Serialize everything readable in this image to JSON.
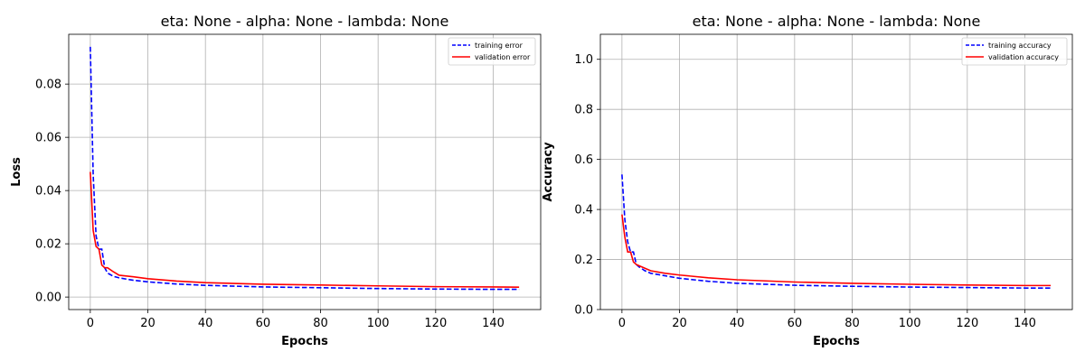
{
  "colors": {
    "training": "#0000ff",
    "validation": "#ff0000",
    "grid": "#b0b0b0"
  },
  "chart_data": [
    {
      "type": "line",
      "title": "eta: None - alpha: None - lambda: None",
      "xlabel": "Epochs",
      "ylabel": "Loss",
      "xlim": [
        -7.5,
        156.5
      ],
      "ylim": [
        -0.0047,
        0.0987
      ],
      "xticks": [
        0,
        20,
        40,
        60,
        80,
        100,
        120,
        140
      ],
      "yticks": [
        0.0,
        0.02,
        0.04,
        0.06,
        0.08
      ],
      "ytick_labels": [
        "0.00",
        "0.02",
        "0.04",
        "0.06",
        "0.08"
      ],
      "grid": true,
      "legend_position": "top-right",
      "series": [
        {
          "name": "training error",
          "style": "dashed",
          "color": "blue",
          "points": [
            [
              0,
              0.094
            ],
            [
              1,
              0.046
            ],
            [
              2,
              0.023
            ],
            [
              3,
              0.018
            ],
            [
              4,
              0.018
            ],
            [
              5,
              0.011
            ],
            [
              6,
              0.009
            ],
            [
              8,
              0.0078
            ],
            [
              10,
              0.0072
            ],
            [
              15,
              0.0063
            ],
            [
              20,
              0.0057
            ],
            [
              30,
              0.0049
            ],
            [
              40,
              0.0044
            ],
            [
              60,
              0.0038
            ],
            [
              80,
              0.0035
            ],
            [
              100,
              0.0032
            ],
            [
              120,
              0.003
            ],
            [
              140,
              0.0029
            ],
            [
              149,
              0.0029
            ]
          ]
        },
        {
          "name": "validation error",
          "style": "solid",
          "color": "red",
          "points": [
            [
              0,
              0.047
            ],
            [
              1,
              0.025
            ],
            [
              2,
              0.019
            ],
            [
              3,
              0.018
            ],
            [
              4,
              0.012
            ],
            [
              5,
              0.011
            ],
            [
              6,
              0.011
            ],
            [
              8,
              0.0095
            ],
            [
              10,
              0.0082
            ],
            [
              15,
              0.0076
            ],
            [
              20,
              0.0069
            ],
            [
              30,
              0.006
            ],
            [
              40,
              0.0054
            ],
            [
              60,
              0.0048
            ],
            [
              80,
              0.0045
            ],
            [
              100,
              0.0042
            ],
            [
              120,
              0.0039
            ],
            [
              140,
              0.0038
            ],
            [
              149,
              0.0037
            ]
          ]
        }
      ]
    },
    {
      "type": "line",
      "title": "eta: None - alpha: None - lambda: None",
      "xlabel": "Epochs",
      "ylabel": "Accuracy",
      "xlim": [
        -7.5,
        156.5
      ],
      "ylim": [
        0.0,
        1.1
      ],
      "xticks": [
        0,
        20,
        40,
        60,
        80,
        100,
        120,
        140
      ],
      "yticks": [
        0.0,
        0.2,
        0.4,
        0.6,
        0.8,
        1.0
      ],
      "ytick_labels": [
        "0.0",
        "0.2",
        "0.4",
        "0.6",
        "0.8",
        "1.0"
      ],
      "grid": true,
      "legend_position": "top-right",
      "series": [
        {
          "name": "training accuracy",
          "style": "dashed",
          "color": "blue",
          "points": [
            [
              0,
              0.54
            ],
            [
              1,
              0.36
            ],
            [
              2,
              0.27
            ],
            [
              3,
              0.23
            ],
            [
              4,
              0.23
            ],
            [
              5,
              0.18
            ],
            [
              6,
              0.17
            ],
            [
              8,
              0.155
            ],
            [
              10,
              0.145
            ],
            [
              15,
              0.135
            ],
            [
              20,
              0.125
            ],
            [
              30,
              0.113
            ],
            [
              40,
              0.105
            ],
            [
              60,
              0.097
            ],
            [
              80,
              0.093
            ],
            [
              100,
              0.09
            ],
            [
              120,
              0.088
            ],
            [
              140,
              0.086
            ],
            [
              149,
              0.086
            ]
          ]
        },
        {
          "name": "validation accuracy",
          "style": "solid",
          "color": "red",
          "points": [
            [
              0,
              0.38
            ],
            [
              1,
              0.29
            ],
            [
              2,
              0.23
            ],
            [
              3,
              0.23
            ],
            [
              4,
              0.19
            ],
            [
              5,
              0.18
            ],
            [
              6,
              0.175
            ],
            [
              8,
              0.165
            ],
            [
              10,
              0.155
            ],
            [
              15,
              0.145
            ],
            [
              20,
              0.138
            ],
            [
              30,
              0.127
            ],
            [
              40,
              0.119
            ],
            [
              60,
              0.11
            ],
            [
              80,
              0.105
            ],
            [
              100,
              0.101
            ],
            [
              120,
              0.098
            ],
            [
              140,
              0.096
            ],
            [
              149,
              0.096
            ]
          ]
        }
      ]
    }
  ]
}
